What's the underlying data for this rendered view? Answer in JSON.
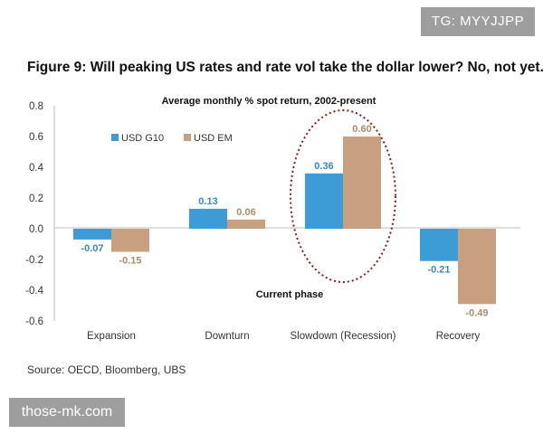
{
  "watermarks": {
    "top_right": "TG: MYYJJPP",
    "bottom_left": "those-mk.com"
  },
  "figure_title": "Figure 9: Will peaking US rates and rate vol take the dollar lower? No, not yet.",
  "source": "Source: OECD, Bloomberg, UBS",
  "colors": {
    "usd_g10": "#3d9bd6",
    "usd_em": "#c7a080",
    "annotation_ellipse": "#8b1a1a"
  },
  "chart_data": {
    "type": "bar",
    "title": "Average monthly % spot return, 2002-present",
    "categories": [
      "Expansion",
      "Downturn",
      "Slowdown (Recession)",
      "Recovery"
    ],
    "series": [
      {
        "name": "USD G10",
        "values": [
          -0.07,
          0.13,
          0.36,
          -0.21
        ],
        "labels": [
          "-0.07",
          "0.13",
          "0.36",
          "-0.21"
        ]
      },
      {
        "name": "USD EM",
        "values": [
          -0.15,
          0.06,
          0.6,
          -0.49
        ],
        "labels": [
          "-0.15",
          "0.06",
          "0.60",
          "-0.49"
        ]
      }
    ],
    "ylim": [
      -0.6,
      0.8
    ],
    "yticks": [
      "0.8",
      "0.6",
      "0.4",
      "0.2",
      "0.0",
      "-0.2",
      "-0.4",
      "-0.6"
    ],
    "ytick_values": [
      0.8,
      0.6,
      0.4,
      0.2,
      0.0,
      -0.2,
      -0.4,
      -0.6
    ],
    "legend_position": "top-left",
    "annotation": {
      "text": "Current phase",
      "category": "Slowdown (Recession)"
    }
  }
}
